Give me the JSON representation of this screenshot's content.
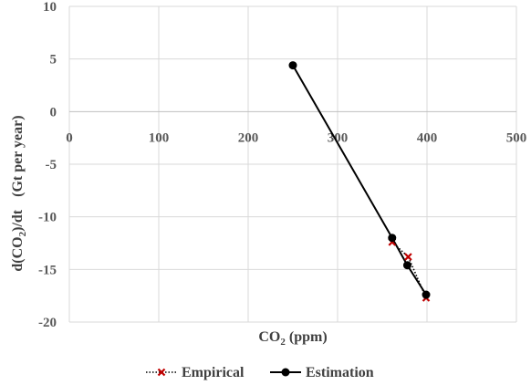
{
  "chart_data": {
    "type": "scatter",
    "x_axis": {
      "title_main": "CO",
      "title_sub": "2",
      "title_tail": " (ppm)",
      "range": [
        0,
        500
      ],
      "ticks": [
        0,
        100,
        200,
        300,
        400,
        500
      ],
      "tick_labels": [
        "0",
        "100",
        "200",
        "300",
        "400",
        "500"
      ]
    },
    "y_axis": {
      "title_main": "d(CO",
      "title_sub": "2",
      "title_tail": ")/dt",
      "title_unit": "(Gt per year)",
      "range": [
        -20,
        10
      ],
      "ticks": [
        10,
        5,
        0,
        -5,
        -10,
        -15,
        -20
      ],
      "tick_labels": [
        "10",
        "5",
        "0",
        "-5",
        "-10",
        "-15",
        "-20"
      ]
    },
    "grid": true,
    "legend_position": "bottom",
    "series": [
      {
        "name": "Empirical",
        "color": "#c00000",
        "line_color": "#000000",
        "line_style": "dotted",
        "marker": "cross",
        "x": [
          361,
          379,
          399
        ],
        "y": [
          -12.4,
          -13.8,
          -17.7
        ]
      },
      {
        "name": "Estimation",
        "color": "#000000",
        "line_color": "#000000",
        "line_style": "solid",
        "marker": "circle",
        "x": [
          250,
          361,
          378,
          399
        ],
        "y": [
          4.4,
          -12.0,
          -14.6,
          -17.4
        ]
      }
    ]
  }
}
